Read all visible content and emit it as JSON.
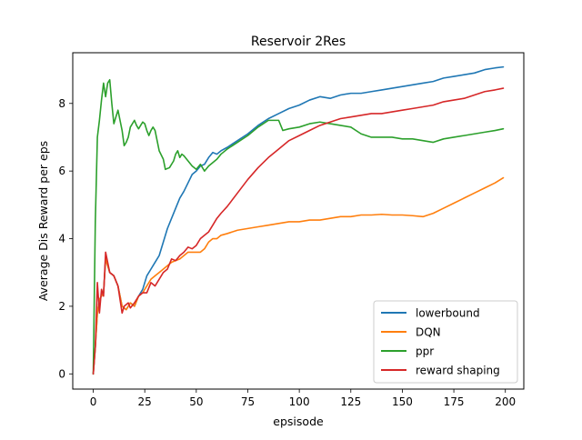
{
  "chart_data": {
    "type": "line",
    "title": "Reservoir 2Res",
    "xlabel": "epsisode",
    "ylabel": "Average Dis Reward per eps",
    "xlim": [
      -9.95,
      208.95
    ],
    "ylim": [
      -0.45,
      9.5
    ],
    "xticks": [
      0,
      25,
      50,
      75,
      100,
      125,
      150,
      175,
      200
    ],
    "yticks": [
      0,
      2,
      4,
      6,
      8
    ],
    "grid": false,
    "legend_position": "lower-right",
    "series": [
      {
        "name": "lowerbound",
        "color": "#1f77b4",
        "points": [
          [
            0,
            0
          ],
          [
            1,
            0.8
          ],
          [
            2,
            1.8
          ],
          [
            3,
            2.2
          ],
          [
            4,
            2.3
          ],
          [
            5,
            2.4
          ],
          [
            6,
            3.4
          ],
          [
            7,
            3.2
          ],
          [
            8,
            3.0
          ],
          [
            10,
            2.9
          ],
          [
            12,
            2.6
          ],
          [
            14,
            2.0
          ],
          [
            16,
            1.9
          ],
          [
            18,
            2.1
          ],
          [
            20,
            2.0
          ],
          [
            22,
            2.3
          ],
          [
            24,
            2.5
          ],
          [
            26,
            2.9
          ],
          [
            28,
            3.1
          ],
          [
            30,
            3.3
          ],
          [
            32,
            3.5
          ],
          [
            34,
            3.9
          ],
          [
            36,
            4.3
          ],
          [
            38,
            4.6
          ],
          [
            40,
            4.9
          ],
          [
            42,
            5.2
          ],
          [
            44,
            5.4
          ],
          [
            46,
            5.65
          ],
          [
            48,
            5.9
          ],
          [
            50,
            6.0
          ],
          [
            52,
            6.15
          ],
          [
            54,
            6.2
          ],
          [
            56,
            6.4
          ],
          [
            58,
            6.55
          ],
          [
            60,
            6.5
          ],
          [
            62,
            6.6
          ],
          [
            65,
            6.7
          ],
          [
            70,
            6.9
          ],
          [
            75,
            7.1
          ],
          [
            80,
            7.35
          ],
          [
            85,
            7.55
          ],
          [
            90,
            7.7
          ],
          [
            95,
            7.85
          ],
          [
            100,
            7.95
          ],
          [
            105,
            8.1
          ],
          [
            110,
            8.2
          ],
          [
            115,
            8.15
          ],
          [
            120,
            8.25
          ],
          [
            125,
            8.3
          ],
          [
            130,
            8.3
          ],
          [
            135,
            8.35
          ],
          [
            140,
            8.4
          ],
          [
            145,
            8.45
          ],
          [
            150,
            8.5
          ],
          [
            155,
            8.55
          ],
          [
            160,
            8.6
          ],
          [
            165,
            8.65
          ],
          [
            170,
            8.75
          ],
          [
            175,
            8.8
          ],
          [
            180,
            8.85
          ],
          [
            185,
            8.9
          ],
          [
            190,
            9.0
          ],
          [
            195,
            9.05
          ],
          [
            199,
            9.08
          ]
        ]
      },
      {
        "name": "DQN",
        "color": "#ff7f0e",
        "points": [
          [
            0,
            0
          ],
          [
            1,
            0.8
          ],
          [
            2,
            1.8
          ],
          [
            3,
            2.2
          ],
          [
            4,
            2.3
          ],
          [
            5,
            2.4
          ],
          [
            6,
            3.4
          ],
          [
            7,
            3.2
          ],
          [
            8,
            3.0
          ],
          [
            10,
            2.9
          ],
          [
            12,
            2.6
          ],
          [
            14,
            2.0
          ],
          [
            16,
            1.9
          ],
          [
            18,
            2.1
          ],
          [
            20,
            2.0
          ],
          [
            22,
            2.3
          ],
          [
            24,
            2.4
          ],
          [
            26,
            2.6
          ],
          [
            28,
            2.8
          ],
          [
            30,
            2.9
          ],
          [
            32,
            3.0
          ],
          [
            34,
            3.1
          ],
          [
            36,
            3.2
          ],
          [
            38,
            3.3
          ],
          [
            40,
            3.35
          ],
          [
            42,
            3.4
          ],
          [
            44,
            3.5
          ],
          [
            46,
            3.6
          ],
          [
            48,
            3.6
          ],
          [
            50,
            3.6
          ],
          [
            52,
            3.6
          ],
          [
            54,
            3.7
          ],
          [
            56,
            3.9
          ],
          [
            58,
            4.0
          ],
          [
            60,
            4.0
          ],
          [
            62,
            4.1
          ],
          [
            65,
            4.15
          ],
          [
            70,
            4.25
          ],
          [
            75,
            4.3
          ],
          [
            80,
            4.35
          ],
          [
            85,
            4.4
          ],
          [
            90,
            4.45
          ],
          [
            95,
            4.5
          ],
          [
            100,
            4.5
          ],
          [
            105,
            4.55
          ],
          [
            110,
            4.55
          ],
          [
            115,
            4.6
          ],
          [
            120,
            4.65
          ],
          [
            125,
            4.65
          ],
          [
            130,
            4.7
          ],
          [
            135,
            4.7
          ],
          [
            140,
            4.72
          ],
          [
            145,
            4.7
          ],
          [
            150,
            4.7
          ],
          [
            155,
            4.68
          ],
          [
            160,
            4.65
          ],
          [
            165,
            4.75
          ],
          [
            170,
            4.9
          ],
          [
            175,
            5.05
          ],
          [
            180,
            5.2
          ],
          [
            185,
            5.35
          ],
          [
            190,
            5.5
          ],
          [
            195,
            5.65
          ],
          [
            199,
            5.8
          ]
        ]
      },
      {
        "name": "ppr",
        "color": "#2ca02c",
        "points": [
          [
            0,
            0
          ],
          [
            1,
            4.5
          ],
          [
            2,
            7.0
          ],
          [
            3,
            7.5
          ],
          [
            4,
            8.1
          ],
          [
            5,
            8.6
          ],
          [
            6,
            8.2
          ],
          [
            7,
            8.6
          ],
          [
            8,
            8.7
          ],
          [
            9,
            8.0
          ],
          [
            10,
            7.4
          ],
          [
            11,
            7.6
          ],
          [
            12,
            7.8
          ],
          [
            13,
            7.5
          ],
          [
            14,
            7.2
          ],
          [
            15,
            6.75
          ],
          [
            16,
            6.85
          ],
          [
            17,
            7.0
          ],
          [
            18,
            7.3
          ],
          [
            19,
            7.4
          ],
          [
            20,
            7.5
          ],
          [
            21,
            7.35
          ],
          [
            22,
            7.25
          ],
          [
            23,
            7.35
          ],
          [
            24,
            7.45
          ],
          [
            25,
            7.4
          ],
          [
            26,
            7.2
          ],
          [
            27,
            7.05
          ],
          [
            28,
            7.2
          ],
          [
            29,
            7.3
          ],
          [
            30,
            7.2
          ],
          [
            31,
            6.9
          ],
          [
            32,
            6.6
          ],
          [
            34,
            6.35
          ],
          [
            35,
            6.05
          ],
          [
            37,
            6.1
          ],
          [
            39,
            6.3
          ],
          [
            40,
            6.5
          ],
          [
            41,
            6.6
          ],
          [
            42,
            6.4
          ],
          [
            43,
            6.5
          ],
          [
            44,
            6.45
          ],
          [
            46,
            6.3
          ],
          [
            48,
            6.15
          ],
          [
            50,
            6.05
          ],
          [
            52,
            6.2
          ],
          [
            54,
            6.0
          ],
          [
            56,
            6.15
          ],
          [
            58,
            6.25
          ],
          [
            60,
            6.35
          ],
          [
            62,
            6.5
          ],
          [
            65,
            6.65
          ],
          [
            70,
            6.85
          ],
          [
            75,
            7.05
          ],
          [
            80,
            7.3
          ],
          [
            85,
            7.5
          ],
          [
            90,
            7.5
          ],
          [
            92,
            7.2
          ],
          [
            95,
            7.25
          ],
          [
            100,
            7.3
          ],
          [
            105,
            7.4
          ],
          [
            110,
            7.45
          ],
          [
            115,
            7.4
          ],
          [
            120,
            7.35
          ],
          [
            125,
            7.3
          ],
          [
            130,
            7.1
          ],
          [
            135,
            7.0
          ],
          [
            140,
            7.0
          ],
          [
            145,
            7.0
          ],
          [
            150,
            6.95
          ],
          [
            155,
            6.95
          ],
          [
            160,
            6.9
          ],
          [
            165,
            6.85
          ],
          [
            170,
            6.95
          ],
          [
            175,
            7.0
          ],
          [
            180,
            7.05
          ],
          [
            185,
            7.1
          ],
          [
            190,
            7.15
          ],
          [
            195,
            7.2
          ],
          [
            199,
            7.25
          ]
        ]
      },
      {
        "name": "reward shaping",
        "color": "#d62728",
        "points": [
          [
            0,
            0
          ],
          [
            1,
            0.8
          ],
          [
            2,
            2.7
          ],
          [
            3,
            1.8
          ],
          [
            4,
            2.5
          ],
          [
            5,
            2.3
          ],
          [
            6,
            3.6
          ],
          [
            7,
            3.3
          ],
          [
            8,
            3.0
          ],
          [
            10,
            2.9
          ],
          [
            12,
            2.6
          ],
          [
            14,
            1.8
          ],
          [
            15,
            2.0
          ],
          [
            17,
            2.1
          ],
          [
            18,
            1.95
          ],
          [
            20,
            2.1
          ],
          [
            22,
            2.3
          ],
          [
            24,
            2.4
          ],
          [
            26,
            2.4
          ],
          [
            28,
            2.7
          ],
          [
            30,
            2.6
          ],
          [
            32,
            2.8
          ],
          [
            34,
            3.0
          ],
          [
            36,
            3.1
          ],
          [
            38,
            3.4
          ],
          [
            40,
            3.35
          ],
          [
            42,
            3.5
          ],
          [
            44,
            3.6
          ],
          [
            46,
            3.75
          ],
          [
            48,
            3.7
          ],
          [
            50,
            3.8
          ],
          [
            52,
            4.0
          ],
          [
            54,
            4.1
          ],
          [
            56,
            4.2
          ],
          [
            58,
            4.4
          ],
          [
            60,
            4.6
          ],
          [
            62,
            4.75
          ],
          [
            65,
            4.95
          ],
          [
            70,
            5.35
          ],
          [
            75,
            5.75
          ],
          [
            80,
            6.1
          ],
          [
            85,
            6.4
          ],
          [
            90,
            6.65
          ],
          [
            95,
            6.9
          ],
          [
            100,
            7.05
          ],
          [
            105,
            7.2
          ],
          [
            110,
            7.35
          ],
          [
            115,
            7.45
          ],
          [
            120,
            7.55
          ],
          [
            125,
            7.6
          ],
          [
            130,
            7.65
          ],
          [
            135,
            7.7
          ],
          [
            140,
            7.7
          ],
          [
            145,
            7.75
          ],
          [
            150,
            7.8
          ],
          [
            155,
            7.85
          ],
          [
            160,
            7.9
          ],
          [
            165,
            7.95
          ],
          [
            170,
            8.05
          ],
          [
            175,
            8.1
          ],
          [
            180,
            8.15
          ],
          [
            185,
            8.25
          ],
          [
            190,
            8.35
          ],
          [
            195,
            8.4
          ],
          [
            199,
            8.45
          ]
        ]
      }
    ]
  }
}
